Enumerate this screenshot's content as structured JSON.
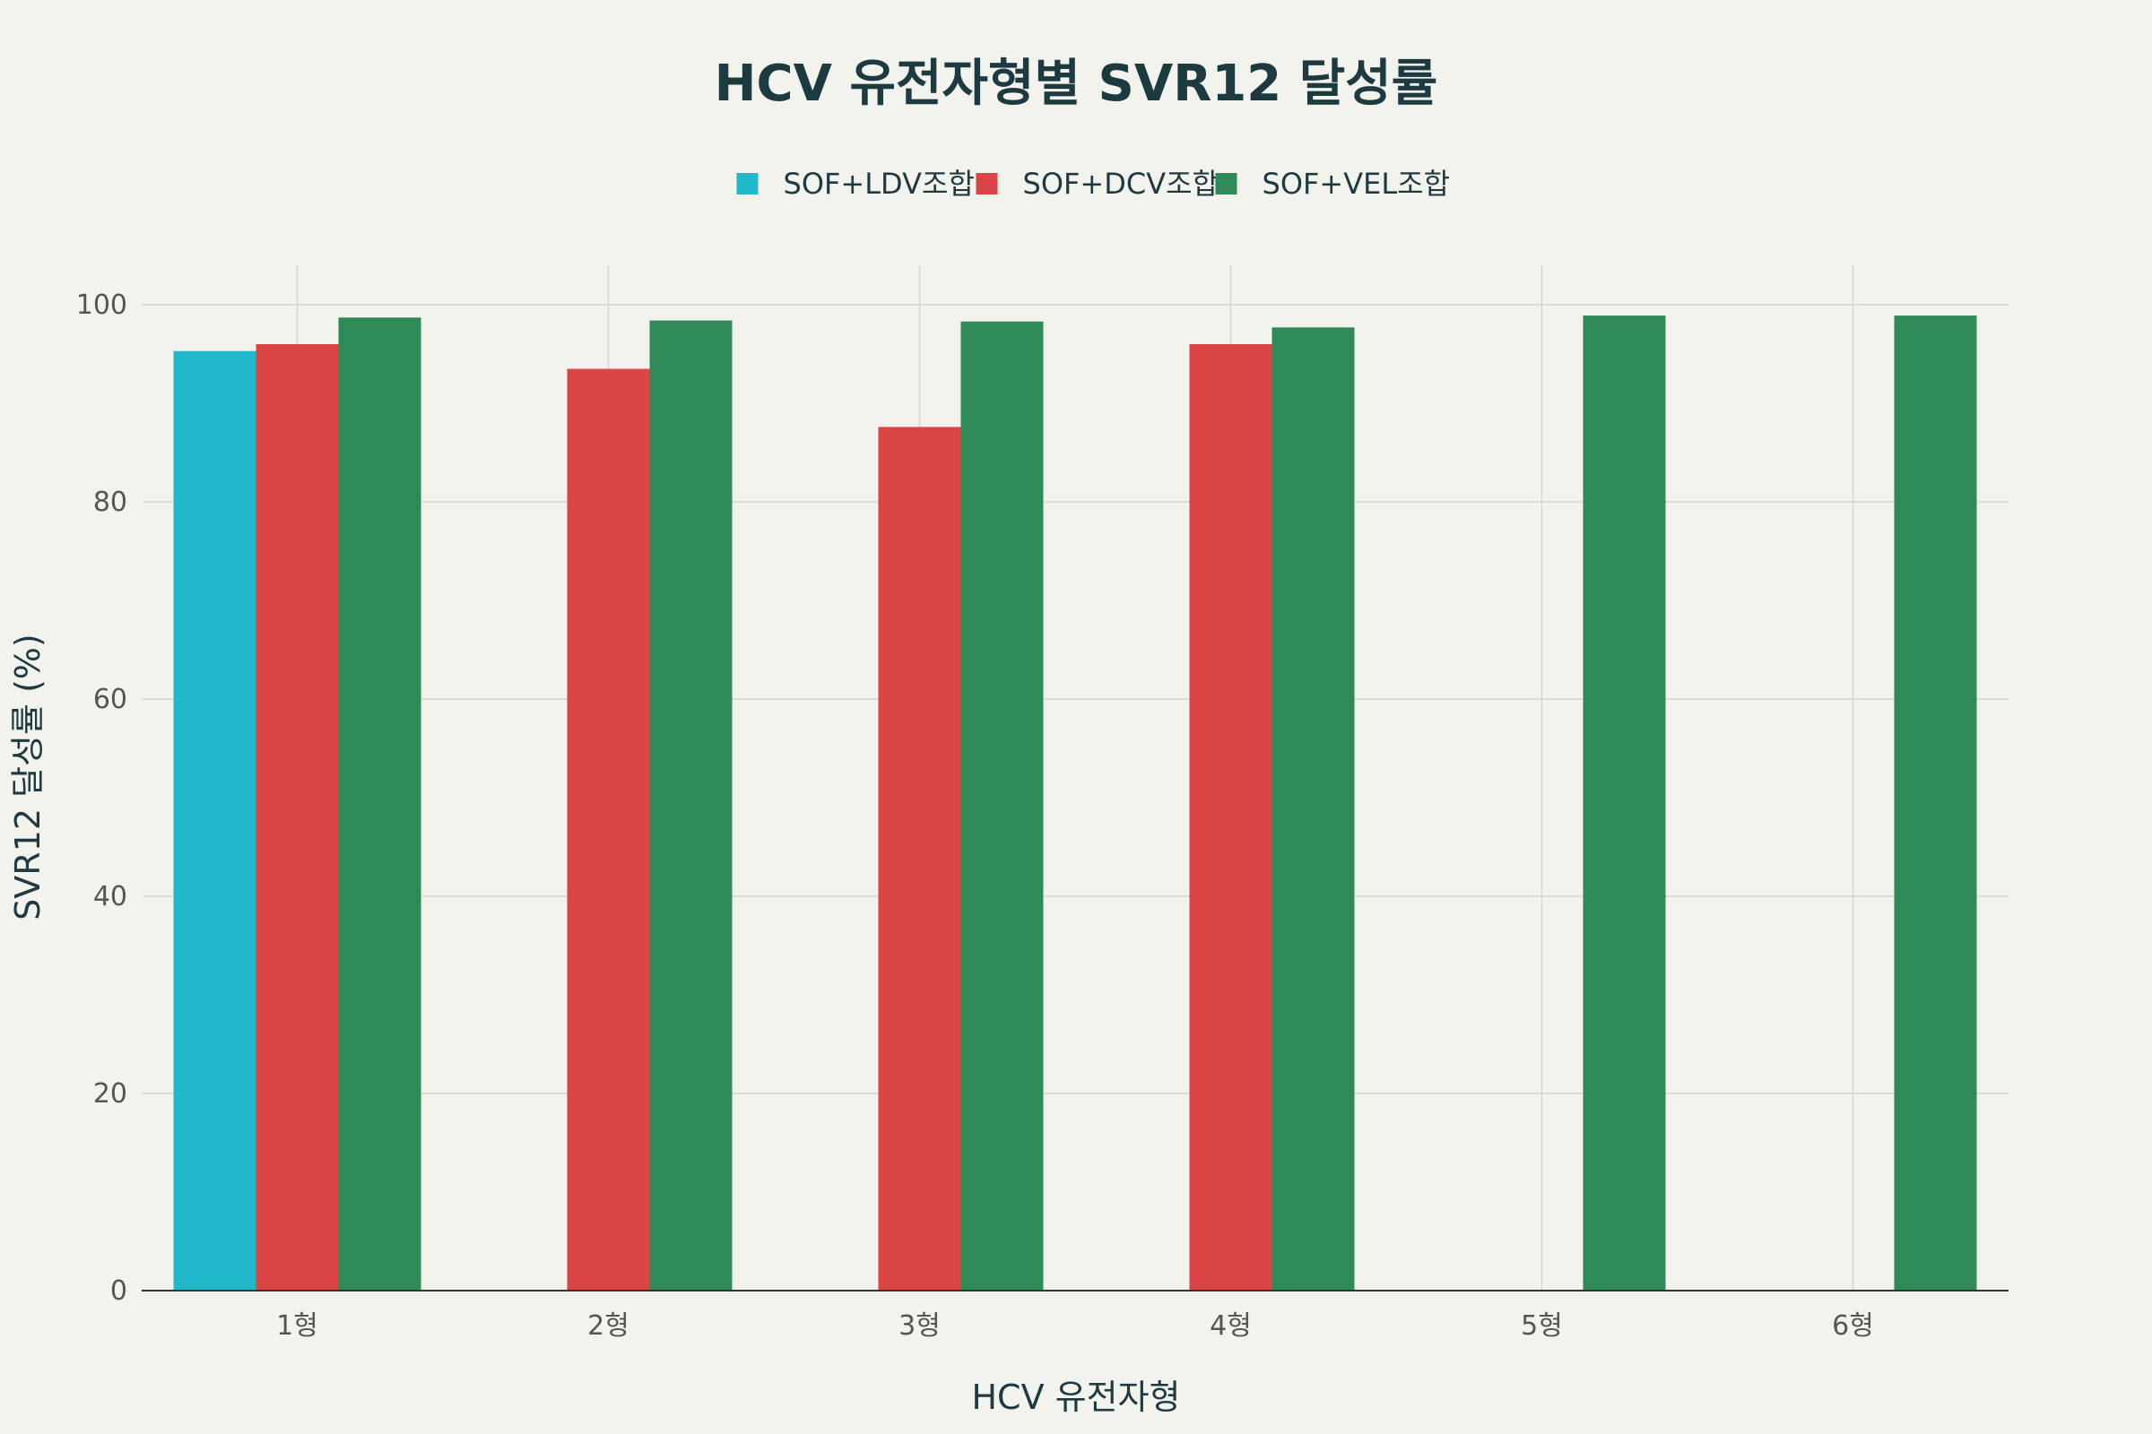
{
  "chart_data": {
    "type": "bar",
    "title": "HCV 유전자형별 SVR12 달성률",
    "xlabel": "HCV 유전자형",
    "ylabel": "SVR12 달성률 (%)",
    "categories": [
      "1형",
      "2형",
      "3형",
      "4형",
      "5형",
      "6형"
    ],
    "ylim": [
      0,
      100
    ],
    "yticks": [
      0,
      20,
      40,
      60,
      80,
      100
    ],
    "grid": true,
    "legend_position": "top-center",
    "series": [
      {
        "name": "SOF+LDV조합",
        "color": "#21b8cc",
        "values": [
          95.3,
          null,
          null,
          null,
          null,
          null
        ]
      },
      {
        "name": "SOF+DCV조합",
        "color": "#db4545",
        "values": [
          96.0,
          93.5,
          87.6,
          96.0,
          null,
          null
        ]
      },
      {
        "name": "SOF+VEL조합",
        "color": "#2e8a57",
        "values": [
          98.7,
          98.4,
          98.3,
          97.7,
          98.9,
          98.9
        ]
      }
    ]
  }
}
